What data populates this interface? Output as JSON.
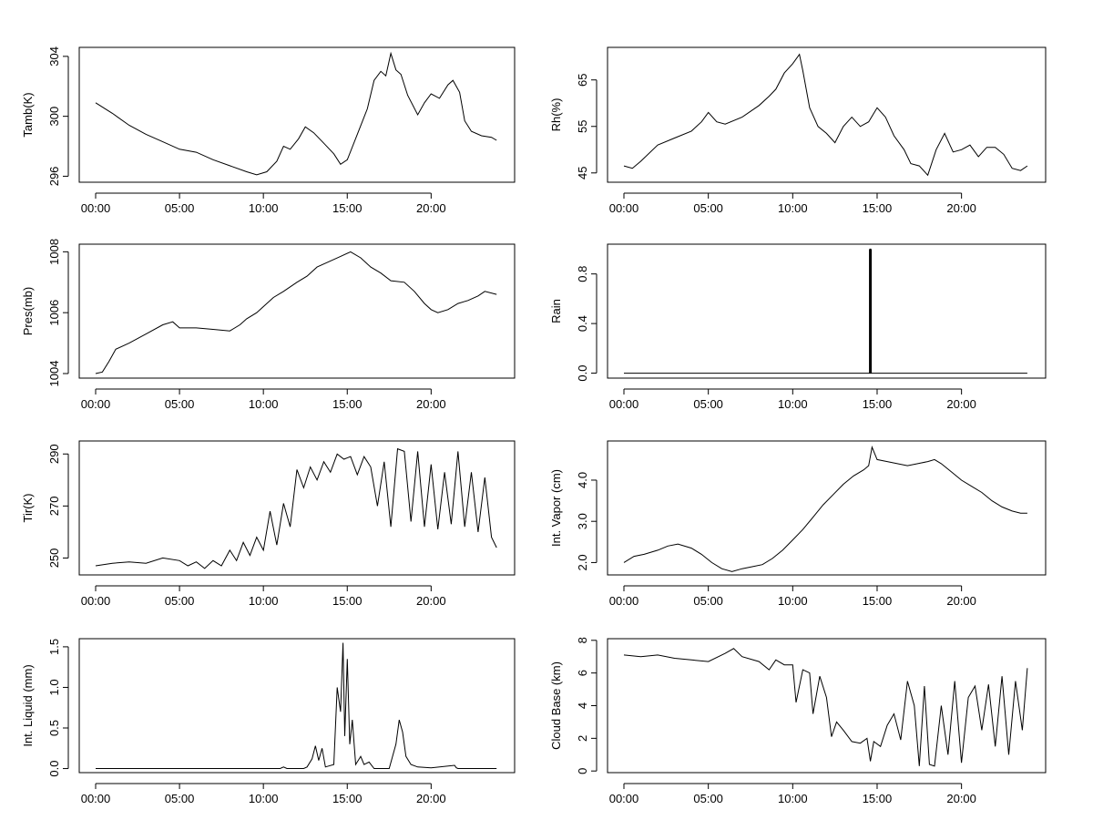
{
  "chart_data": [
    {
      "type": "line",
      "ylabel": "Tamb(K)",
      "xlim": [
        0,
        24
      ],
      "ylim": [
        295.6,
        304.6
      ],
      "yticks": [
        296,
        300,
        304
      ],
      "xticks": [
        0,
        5,
        10,
        15,
        20
      ],
      "xtick_labels": [
        "00:00",
        "05:00",
        "10:00",
        "15:00",
        "20:00"
      ],
      "x": [
        0.0,
        1,
        2,
        3,
        4,
        5,
        6,
        7,
        8,
        9,
        9.6,
        10.2,
        10.8,
        11.2,
        11.6,
        12.1,
        12.5,
        13.0,
        13.6,
        14.2,
        14.6,
        15.0,
        15.6,
        16.2,
        16.6,
        17.0,
        17.3,
        17.6,
        17.9,
        18.2,
        18.6,
        19.2,
        19.6,
        20.0,
        20.5,
        21.0,
        21.3,
        21.7,
        22.0,
        22.4,
        23.0,
        23.6,
        23.9
      ],
      "y": [
        300.9,
        300.2,
        299.4,
        298.8,
        298.3,
        297.8,
        297.6,
        297.1,
        296.7,
        296.3,
        296.1,
        296.3,
        297.0,
        298.0,
        297.8,
        298.5,
        299.3,
        298.9,
        298.2,
        297.5,
        296.8,
        297.1,
        298.8,
        300.5,
        302.4,
        303.0,
        302.7,
        304.2,
        303.1,
        302.8,
        301.4,
        300.1,
        300.9,
        301.5,
        301.2,
        302.1,
        302.4,
        301.6,
        299.7,
        299.0,
        298.7,
        298.6,
        298.4
      ]
    },
    {
      "type": "line",
      "ylabel": "Rh(%)",
      "xlim": [
        0,
        24
      ],
      "ylim": [
        43,
        72
      ],
      "yticks": [
        45,
        55,
        65
      ],
      "xticks": [
        0,
        5,
        10,
        15,
        20
      ],
      "xtick_labels": [
        "00:00",
        "05:00",
        "10:00",
        "15:00",
        "20:00"
      ],
      "x": [
        0.0,
        0.5,
        1,
        2,
        3,
        4,
        4.6,
        5,
        5.5,
        6,
        7,
        8,
        8.6,
        9.0,
        9.5,
        10.0,
        10.4,
        10.6,
        11.0,
        11.5,
        12.0,
        12.5,
        13.0,
        13.5,
        14.0,
        14.5,
        15.0,
        15.5,
        16.0,
        16.6,
        17.0,
        17.5,
        18.0,
        18.5,
        19.0,
        19.5,
        20.0,
        20.5,
        21.0,
        21.5,
        22.0,
        22.5,
        23.0,
        23.5,
        23.9
      ],
      "y": [
        46.5,
        46.0,
        47.5,
        51.0,
        52.5,
        54.0,
        56.0,
        58.0,
        56.0,
        55.5,
        57.0,
        59.5,
        61.5,
        63.0,
        66.5,
        68.5,
        70.5,
        67.0,
        59.0,
        55.0,
        53.5,
        51.5,
        55.0,
        57.0,
        55.0,
        56.0,
        59.0,
        57.0,
        53.0,
        50.0,
        47.0,
        46.5,
        44.5,
        50.0,
        53.5,
        49.5,
        50.0,
        51.0,
        48.5,
        50.5,
        50.5,
        49.0,
        46.0,
        45.5,
        46.5
      ]
    },
    {
      "type": "line",
      "ylabel": "Pres(mb)",
      "xlim": [
        0,
        24
      ],
      "ylim": [
        1003.85,
        1008.25
      ],
      "yticks": [
        1004,
        1006,
        1008
      ],
      "xticks": [
        0,
        5,
        10,
        15,
        20
      ],
      "xtick_labels": [
        "00:00",
        "05:00",
        "10:00",
        "15:00",
        "20:00"
      ],
      "x": [
        0.0,
        0.4,
        0.8,
        1.2,
        2,
        3,
        4,
        4.6,
        5,
        6,
        7,
        8,
        8.6,
        9.0,
        9.6,
        10,
        10.6,
        11.2,
        12,
        12.6,
        13.2,
        14,
        14.6,
        15.2,
        15.8,
        16.4,
        17.0,
        17.6,
        18.4,
        19.0,
        19.6,
        20.0,
        20.4,
        21.0,
        21.6,
        22.2,
        22.8,
        23.2,
        23.9
      ],
      "y": [
        1004.0,
        1004.05,
        1004.4,
        1004.8,
        1005.0,
        1005.3,
        1005.6,
        1005.7,
        1005.5,
        1005.5,
        1005.45,
        1005.4,
        1005.6,
        1005.8,
        1006.0,
        1006.2,
        1006.5,
        1006.7,
        1007.0,
        1007.2,
        1007.5,
        1007.7,
        1007.85,
        1008.0,
        1007.8,
        1007.5,
        1007.3,
        1007.05,
        1007.0,
        1006.7,
        1006.3,
        1006.1,
        1006.0,
        1006.1,
        1006.3,
        1006.4,
        1006.55,
        1006.7,
        1006.6
      ]
    },
    {
      "type": "line",
      "ylabel": "Rain",
      "xlim": [
        0,
        24
      ],
      "ylim": [
        -0.04,
        1.04
      ],
      "yticks": [
        0.0,
        0.4,
        0.8
      ],
      "ytick_labels": [
        "0.0",
        "0.4",
        "0.8"
      ],
      "xticks": [
        0,
        5,
        10,
        15,
        20
      ],
      "xtick_labels": [
        "00:00",
        "05:00",
        "10:00",
        "15:00",
        "20:00"
      ],
      "x": [
        0.0,
        14.58,
        14.58,
        14.62,
        14.62,
        23.9
      ],
      "y": [
        0,
        0,
        1,
        1,
        0,
        0
      ]
    },
    {
      "type": "line",
      "ylabel": "Tir(K)",
      "xlim": [
        0,
        24
      ],
      "ylim": [
        243.5,
        295
      ],
      "yticks": [
        250,
        270,
        290
      ],
      "xticks": [
        0,
        5,
        10,
        15,
        20
      ],
      "xtick_labels": [
        "00:00",
        "05:00",
        "10:00",
        "15:00",
        "20:00"
      ],
      "x": [
        0.0,
        1,
        2,
        3,
        4,
        5,
        5.5,
        6,
        6.5,
        7,
        7.5,
        8,
        8.4,
        8.8,
        9.2,
        9.6,
        10,
        10.4,
        10.8,
        11.2,
        11.6,
        12,
        12.4,
        12.8,
        13.2,
        13.6,
        14,
        14.4,
        14.8,
        15.2,
        15.6,
        16,
        16.4,
        16.8,
        17.2,
        17.6,
        18,
        18.4,
        18.8,
        19.2,
        19.6,
        20,
        20.4,
        20.8,
        21.2,
        21.6,
        22,
        22.4,
        22.8,
        23.2,
        23.6,
        23.9
      ],
      "y": [
        247,
        248,
        248.5,
        248,
        250,
        249,
        247,
        248.5,
        246,
        249,
        247,
        253,
        249,
        256,
        251,
        258,
        253,
        268,
        255,
        271,
        262,
        284,
        277,
        285,
        280,
        287,
        283,
        290,
        288,
        289,
        282,
        289,
        285,
        270,
        287,
        262,
        292,
        291,
        264,
        291,
        262,
        286,
        261,
        283,
        263,
        291,
        262,
        283,
        260,
        281,
        258,
        254
      ]
    },
    {
      "type": "line",
      "ylabel": "Int. Vapor (cm)",
      "xlim": [
        0,
        24
      ],
      "ylim": [
        1.7,
        4.95
      ],
      "yticks": [
        2.0,
        3.0,
        4.0
      ],
      "ytick_labels": [
        "2.0",
        "3.0",
        "4.0"
      ],
      "xticks": [
        0,
        5,
        10,
        15,
        20
      ],
      "xtick_labels": [
        "00:00",
        "05:00",
        "10:00",
        "15:00",
        "20:00"
      ],
      "x": [
        0.0,
        0.6,
        1.2,
        2,
        2.6,
        3.2,
        4,
        4.6,
        5.2,
        5.8,
        6.4,
        7.0,
        7.6,
        8.2,
        8.8,
        9.4,
        10.0,
        10.6,
        11.2,
        11.8,
        12.4,
        13.0,
        13.6,
        14.2,
        14.5,
        14.7,
        15.0,
        15.6,
        16.2,
        16.8,
        17.4,
        18.0,
        18.4,
        18.8,
        19.4,
        20.0,
        20.6,
        21.2,
        21.8,
        22.4,
        23.0,
        23.5,
        23.9
      ],
      "y": [
        2.0,
        2.15,
        2.2,
        2.3,
        2.4,
        2.45,
        2.35,
        2.2,
        2.0,
        1.85,
        1.78,
        1.85,
        1.9,
        1.95,
        2.1,
        2.3,
        2.55,
        2.8,
        3.1,
        3.4,
        3.65,
        3.9,
        4.1,
        4.25,
        4.35,
        4.8,
        4.5,
        4.45,
        4.4,
        4.35,
        4.4,
        4.45,
        4.5,
        4.4,
        4.2,
        4.0,
        3.85,
        3.7,
        3.5,
        3.35,
        3.25,
        3.2,
        3.2
      ]
    },
    {
      "type": "line",
      "ylabel": "Int. Liquid (mm)",
      "xlim": [
        0,
        24
      ],
      "ylim": [
        -0.05,
        1.6
      ],
      "yticks": [
        0.0,
        0.5,
        1.0,
        1.5
      ],
      "ytick_labels": [
        "0.0",
        "0.5",
        "1.0",
        "1.5"
      ],
      "xticks": [
        0,
        5,
        10,
        15,
        20
      ],
      "xtick_labels": [
        "00:00",
        "05:00",
        "10:00",
        "15:00",
        "20:00"
      ],
      "x": [
        0.0,
        11.0,
        11.2,
        11.4,
        12.4,
        12.6,
        12.9,
        13.1,
        13.3,
        13.5,
        13.7,
        14.2,
        14.4,
        14.6,
        14.75,
        14.85,
        15.0,
        15.15,
        15.3,
        15.5,
        15.8,
        16.0,
        16.3,
        16.6,
        17.5,
        17.9,
        18.1,
        18.3,
        18.5,
        18.8,
        19.2,
        20.0,
        21.4,
        21.5,
        21.6,
        23.9
      ],
      "y": [
        0,
        0,
        0.02,
        0,
        0,
        0.02,
        0.12,
        0.28,
        0.1,
        0.25,
        0.02,
        0.05,
        1.0,
        0.7,
        1.55,
        0.4,
        1.35,
        0.3,
        0.6,
        0.05,
        0.15,
        0.05,
        0.08,
        0,
        0,
        0.3,
        0.6,
        0.45,
        0.15,
        0.05,
        0.02,
        0.01,
        0.04,
        0.01,
        0,
        0
      ]
    },
    {
      "type": "line",
      "ylabel": "Cloud Base (km)",
      "xlim": [
        0,
        24
      ],
      "ylim": [
        -0.1,
        8.1
      ],
      "yticks": [
        0,
        2,
        4,
        6,
        8
      ],
      "ytick_labels": [
        "0",
        "2",
        "4",
        "6",
        "8"
      ],
      "xticks": [
        0,
        5,
        10,
        15,
        20
      ],
      "xtick_labels": [
        "00:00",
        "05:00",
        "10:00",
        "15:00",
        "20:00"
      ],
      "x": [
        0.0,
        1,
        2,
        3,
        4,
        5,
        6,
        6.5,
        7,
        8,
        8.6,
        9,
        9.5,
        10,
        10.2,
        10.6,
        11,
        11.2,
        11.6,
        12,
        12.3,
        12.6,
        13,
        13.5,
        14,
        14.4,
        14.6,
        14.8,
        15.2,
        15.6,
        16,
        16.4,
        16.8,
        17.2,
        17.5,
        17.8,
        18.1,
        18.4,
        18.8,
        19.2,
        19.6,
        20.0,
        20.4,
        20.8,
        21.2,
        21.6,
        22.0,
        22.4,
        22.8,
        23.2,
        23.6,
        23.9
      ],
      "y": [
        7.1,
        7.0,
        7.1,
        6.9,
        6.8,
        6.7,
        7.2,
        7.5,
        7.0,
        6.7,
        6.2,
        6.8,
        6.5,
        6.5,
        4.2,
        6.2,
        6.0,
        3.5,
        5.8,
        4.5,
        2.1,
        3.0,
        2.5,
        1.8,
        1.7,
        2.0,
        0.6,
        1.8,
        1.5,
        2.8,
        3.5,
        1.9,
        5.5,
        4.0,
        0.3,
        5.2,
        0.4,
        0.3,
        4.0,
        1.0,
        5.5,
        0.5,
        4.5,
        5.2,
        2.5,
        5.3,
        1.5,
        5.8,
        1.0,
        5.5,
        2.5,
        6.3
      ]
    }
  ]
}
